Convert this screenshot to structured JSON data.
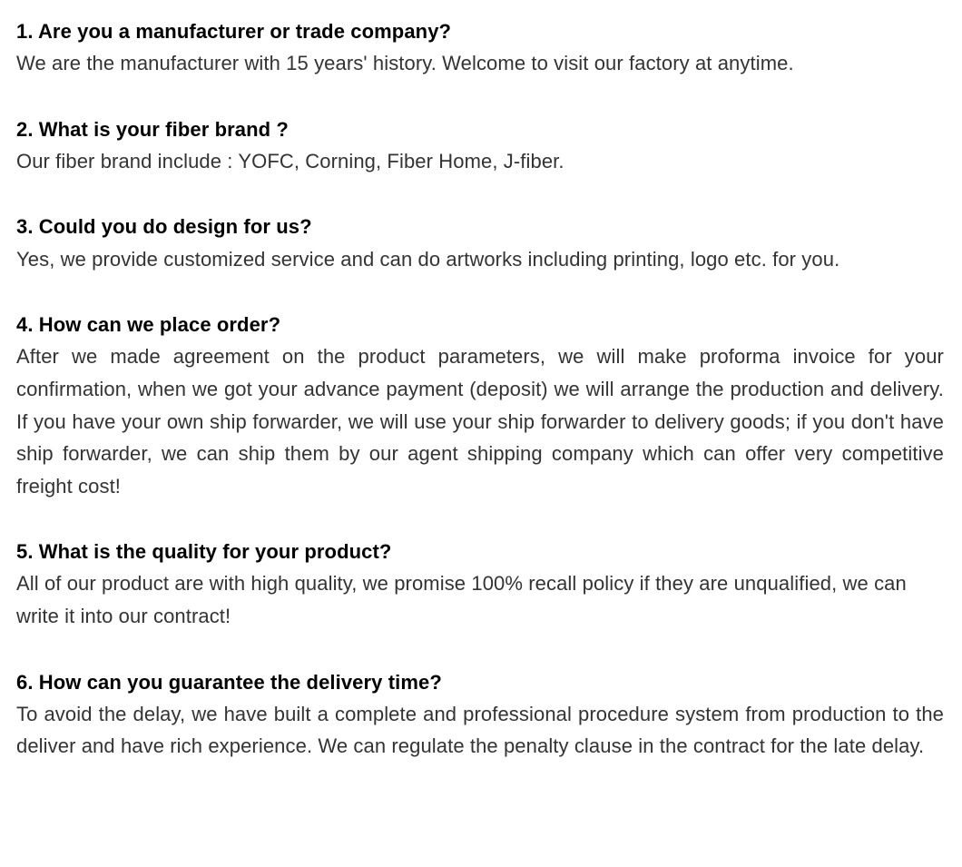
{
  "colors": {
    "background": "#ffffff",
    "question_text": "#000000",
    "answer_text": "#333333"
  },
  "typography": {
    "font_family": "Arial, Helvetica, sans-serif",
    "question_fontsize": 22,
    "question_fontweight": "bold",
    "answer_fontsize": 22,
    "answer_fontweight": "normal",
    "line_height": 1.62
  },
  "faq": [
    {
      "question": "1. Are you a manufacturer or trade company?",
      "answer": "We are the manufacturer with 15 years' history. Welcome to visit our factory at anytime.",
      "justified": false
    },
    {
      "question": "2. What is your fiber brand ?",
      "answer": "Our fiber brand include : YOFC, Corning, Fiber Home, J-fiber.",
      "justified": false
    },
    {
      "question": "3. Could you do design for us?",
      "answer": "Yes, we provide customized service and can do artworks including printing, logo etc. for you.",
      "justified": false
    },
    {
      "question": "4. How can we place order?",
      "answer": "After we made agreement on the product parameters, we will make proforma invoice for your confirmation, when we got your advance payment (deposit) we will arrange the production and delivery. If you have your own ship forwarder, we will use your ship forwarder to delivery goods; if you don't have ship forwarder, we can ship them by our agent shipping company which can offer very competitive freight cost!",
      "justified": true
    },
    {
      "question": "5. What is the quality for your product?",
      "answer": "All of our product are with high quality, we promise 100% recall policy if they are unqualified, we can write it into our contract!",
      "justified": false
    },
    {
      "question": "6. How can you guarantee the delivery time?",
      "answer": "To avoid the delay, we have built a complete and professional procedure system from production to the deliver and have rich experience. We can regulate the penalty clause in the contract for the late delay.",
      "justified": true
    }
  ]
}
